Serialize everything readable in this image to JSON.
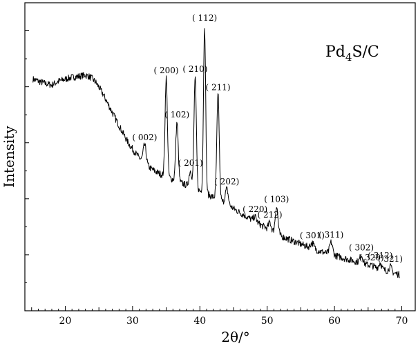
{
  "chart_data": {
    "type": "line",
    "title": "",
    "xlabel": "2θ/°",
    "ylabel": "Intensity",
    "xlim": [
      14,
      72
    ],
    "ylim": [
      0,
      1
    ],
    "x_ticks": [
      20,
      30,
      40,
      50,
      60,
      70
    ],
    "grid": false,
    "legend": "none",
    "sample_label": "Pd4S/C",
    "sample_label_parts": {
      "base": "Pd",
      "subscript": "4",
      "rest": "S/C"
    },
    "line_color": "#000000",
    "baseline": [
      [
        15.2,
        0.752
      ],
      [
        17,
        0.738
      ],
      [
        18,
        0.733
      ],
      [
        19,
        0.745
      ],
      [
        20,
        0.752
      ],
      [
        21,
        0.758
      ],
      [
        22,
        0.761
      ],
      [
        23,
        0.765
      ],
      [
        23.8,
        0.758
      ],
      [
        24.6,
        0.74
      ],
      [
        25.5,
        0.708
      ],
      [
        26.5,
        0.665
      ],
      [
        27.5,
        0.622
      ],
      [
        28.5,
        0.58
      ],
      [
        29.5,
        0.54
      ],
      [
        30.5,
        0.51
      ],
      [
        31.5,
        0.484
      ],
      [
        32.5,
        0.465
      ],
      [
        33.5,
        0.451
      ],
      [
        34.5,
        0.44
      ],
      [
        36,
        0.426
      ],
      [
        38,
        0.408
      ],
      [
        40,
        0.389
      ],
      [
        42,
        0.369
      ],
      [
        44,
        0.346
      ],
      [
        46,
        0.318
      ],
      [
        48,
        0.292
      ],
      [
        50,
        0.267
      ],
      [
        52,
        0.243
      ],
      [
        54,
        0.225
      ],
      [
        56,
        0.208
      ],
      [
        58,
        0.192
      ],
      [
        60,
        0.18
      ],
      [
        62,
        0.167
      ],
      [
        64,
        0.155
      ],
      [
        66,
        0.142
      ],
      [
        68,
        0.128
      ],
      [
        69.7,
        0.117
      ]
    ],
    "peaks": [
      {
        "label": "( 002)",
        "x": 31.8,
        "y": 0.538,
        "w": 0.22
      },
      {
        "label": "( 200)",
        "x": 35.0,
        "y": 0.756,
        "w": 0.17
      },
      {
        "label": "( 102)",
        "x": 36.6,
        "y": 0.612,
        "w": 0.18
      },
      {
        "label": "( 201)",
        "x": 38.6,
        "y": 0.455,
        "w": 0.2
      },
      {
        "label": "( 210)",
        "x": 39.3,
        "y": 0.76,
        "w": 0.17
      },
      {
        "label": "( 112)",
        "x": 40.7,
        "y": 0.926,
        "w": 0.16
      },
      {
        "label": "( 211)",
        "x": 42.7,
        "y": 0.701,
        "w": 0.18
      },
      {
        "label": "( 202)",
        "x": 44.0,
        "y": 0.395,
        "w": 0.22
      },
      {
        "label": "( 220)",
        "x": 48.2,
        "y": 0.305,
        "w": 0.22
      },
      {
        "label": "( 212)",
        "x": 50.4,
        "y": 0.287,
        "w": 0.2
      },
      {
        "label": "( 103)",
        "x": 51.4,
        "y": 0.338,
        "w": 0.2
      },
      {
        "label": "( 301)",
        "x": 56.7,
        "y": 0.22,
        "w": 0.25
      },
      {
        "label": "( 311)",
        "x": 59.5,
        "y": 0.222,
        "w": 0.22
      },
      {
        "label": "( 302)",
        "x": 64.0,
        "y": 0.181,
        "w": 0.22
      },
      {
        "label": "( 320)",
        "x": 65.5,
        "y": 0.148,
        "w": 0.2
      },
      {
        "label": "( 312)",
        "x": 66.8,
        "y": 0.155,
        "w": 0.2
      },
      {
        "label": "( 321)",
        "x": 68.3,
        "y": 0.143,
        "w": 0.2
      }
    ]
  }
}
